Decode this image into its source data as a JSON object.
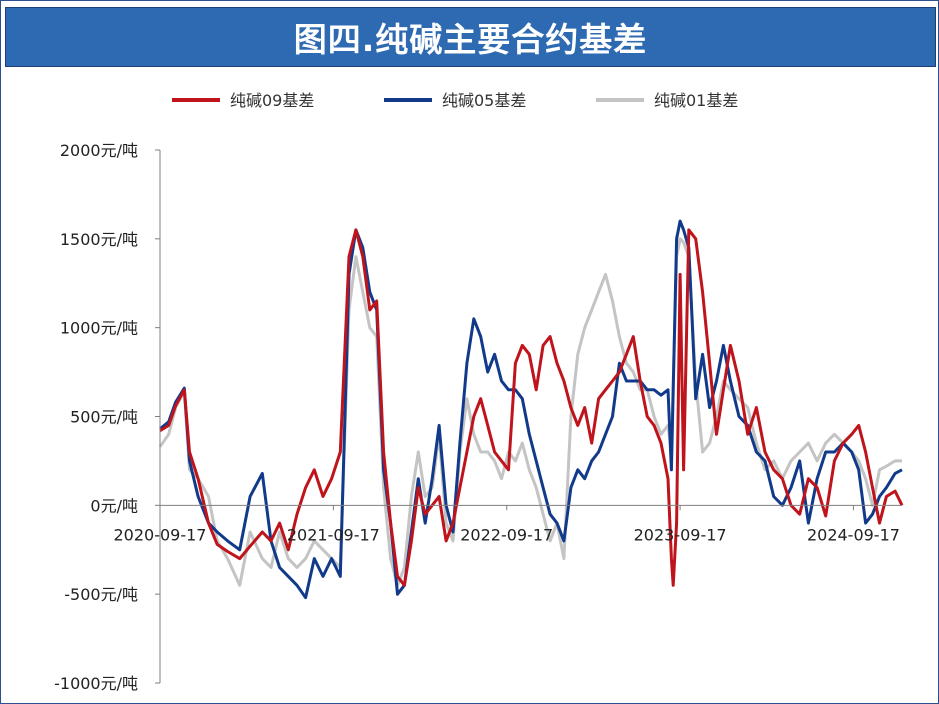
{
  "chart_data": {
    "type": "line",
    "title": "图四.纯碱主要合约基差",
    "y_ticks": [
      "2000元/吨",
      "1500元/吨",
      "1000元/吨",
      "500元/吨",
      "0元/吨",
      "-500元/吨",
      "-1000元/吨"
    ],
    "y_tick_values": [
      2000,
      1500,
      1000,
      500,
      0,
      -500,
      -1000
    ],
    "ylim": [
      -1000,
      2000
    ],
    "x_ticks": [
      "2020-09-17",
      "2021-09-17",
      "2022-09-17",
      "2023-09-17",
      "2024-09-17"
    ],
    "x_tick_values": [
      2020.71,
      2021.71,
      2022.71,
      2023.71,
      2024.71
    ],
    "xlim": [
      2020.71,
      2024.99
    ],
    "legend_position": "top",
    "grid": false,
    "series": [
      {
        "name": "纯碱09基差",
        "color": "#c0141c",
        "points": [
          [
            2020.71,
            420
          ],
          [
            2020.76,
            450
          ],
          [
            2020.8,
            560
          ],
          [
            2020.85,
            650
          ],
          [
            2020.88,
            300
          ],
          [
            2020.93,
            150
          ],
          [
            2020.99,
            -100
          ],
          [
            2021.04,
            -220
          ],
          [
            2021.1,
            -260
          ],
          [
            2021.17,
            -300
          ],
          [
            2021.23,
            -230
          ],
          [
            2021.3,
            -150
          ],
          [
            2021.35,
            -200
          ],
          [
            2021.4,
            -100
          ],
          [
            2021.45,
            -250
          ],
          [
            2021.5,
            -50
          ],
          [
            2021.55,
            100
          ],
          [
            2021.6,
            200
          ],
          [
            2021.65,
            50
          ],
          [
            2021.7,
            150
          ],
          [
            2021.75,
            300
          ],
          [
            2021.8,
            1400
          ],
          [
            2021.84,
            1550
          ],
          [
            2021.88,
            1400
          ],
          [
            2021.92,
            1100
          ],
          [
            2021.96,
            1150
          ],
          [
            2022.0,
            300
          ],
          [
            2022.04,
            -100
          ],
          [
            2022.08,
            -400
          ],
          [
            2022.12,
            -450
          ],
          [
            2022.16,
            -200
          ],
          [
            2022.2,
            100
          ],
          [
            2022.24,
            -50
          ],
          [
            2022.28,
            0
          ],
          [
            2022.32,
            50
          ],
          [
            2022.36,
            -200
          ],
          [
            2022.4,
            -100
          ],
          [
            2022.44,
            100
          ],
          [
            2022.48,
            300
          ],
          [
            2022.52,
            500
          ],
          [
            2022.56,
            600
          ],
          [
            2022.6,
            450
          ],
          [
            2022.64,
            300
          ],
          [
            2022.68,
            250
          ],
          [
            2022.72,
            200
          ],
          [
            2022.76,
            800
          ],
          [
            2022.8,
            900
          ],
          [
            2022.84,
            850
          ],
          [
            2022.88,
            650
          ],
          [
            2022.92,
            900
          ],
          [
            2022.96,
            950
          ],
          [
            2023.0,
            800
          ],
          [
            2023.04,
            700
          ],
          [
            2023.08,
            550
          ],
          [
            2023.12,
            450
          ],
          [
            2023.16,
            550
          ],
          [
            2023.2,
            350
          ],
          [
            2023.24,
            600
          ],
          [
            2023.28,
            650
          ],
          [
            2023.32,
            700
          ],
          [
            2023.36,
            750
          ],
          [
            2023.4,
            850
          ],
          [
            2023.44,
            950
          ],
          [
            2023.48,
            700
          ],
          [
            2023.52,
            500
          ],
          [
            2023.56,
            450
          ],
          [
            2023.6,
            350
          ],
          [
            2023.64,
            150
          ],
          [
            2023.66,
            -300
          ],
          [
            2023.67,
            -450
          ],
          [
            2023.69,
            -100
          ],
          [
            2023.71,
            1300
          ],
          [
            2023.73,
            200
          ],
          [
            2023.76,
            1550
          ],
          [
            2023.8,
            1500
          ],
          [
            2023.84,
            1200
          ],
          [
            2023.88,
            800
          ],
          [
            2023.92,
            400
          ],
          [
            2023.96,
            650
          ],
          [
            2024.0,
            900
          ],
          [
            2024.05,
            700
          ],
          [
            2024.1,
            400
          ],
          [
            2024.15,
            550
          ],
          [
            2024.2,
            300
          ],
          [
            2024.25,
            200
          ],
          [
            2024.3,
            150
          ],
          [
            2024.35,
            0
          ],
          [
            2024.4,
            -50
          ],
          [
            2024.45,
            150
          ],
          [
            2024.5,
            100
          ],
          [
            2024.55,
            -60
          ],
          [
            2024.6,
            250
          ],
          [
            2024.65,
            350
          ],
          [
            2024.7,
            400
          ],
          [
            2024.74,
            450
          ],
          [
            2024.78,
            300
          ],
          [
            2024.82,
            100
          ],
          [
            2024.86,
            -100
          ],
          [
            2024.9,
            50
          ],
          [
            2024.95,
            80
          ],
          [
            2024.99,
            0
          ]
        ]
      },
      {
        "name": "纯碱05基差",
        "color": "#123a8a",
        "points": [
          [
            2020.71,
            430
          ],
          [
            2020.76,
            470
          ],
          [
            2020.8,
            580
          ],
          [
            2020.85,
            660
          ],
          [
            2020.88,
            250
          ],
          [
            2020.93,
            50
          ],
          [
            2020.99,
            -100
          ],
          [
            2021.04,
            -150
          ],
          [
            2021.1,
            -200
          ],
          [
            2021.17,
            -250
          ],
          [
            2021.23,
            50
          ],
          [
            2021.3,
            180
          ],
          [
            2021.35,
            -200
          ],
          [
            2021.4,
            -350
          ],
          [
            2021.45,
            -400
          ],
          [
            2021.5,
            -450
          ],
          [
            2021.55,
            -520
          ],
          [
            2021.6,
            -300
          ],
          [
            2021.65,
            -400
          ],
          [
            2021.7,
            -300
          ],
          [
            2021.75,
            -400
          ],
          [
            2021.8,
            1300
          ],
          [
            2021.84,
            1550
          ],
          [
            2021.88,
            1450
          ],
          [
            2021.92,
            1200
          ],
          [
            2021.96,
            1100
          ],
          [
            2022.0,
            200
          ],
          [
            2022.04,
            -100
          ],
          [
            2022.08,
            -500
          ],
          [
            2022.12,
            -450
          ],
          [
            2022.16,
            -150
          ],
          [
            2022.2,
            150
          ],
          [
            2022.24,
            -100
          ],
          [
            2022.28,
            150
          ],
          [
            2022.32,
            450
          ],
          [
            2022.36,
            0
          ],
          [
            2022.4,
            -150
          ],
          [
            2022.44,
            350
          ],
          [
            2022.48,
            800
          ],
          [
            2022.52,
            1050
          ],
          [
            2022.56,
            950
          ],
          [
            2022.6,
            750
          ],
          [
            2022.64,
            850
          ],
          [
            2022.68,
            700
          ],
          [
            2022.72,
            650
          ],
          [
            2022.76,
            650
          ],
          [
            2022.8,
            600
          ],
          [
            2022.84,
            400
          ],
          [
            2022.88,
            250
          ],
          [
            2022.92,
            100
          ],
          [
            2022.96,
            -50
          ],
          [
            2023.0,
            -100
          ],
          [
            2023.04,
            -200
          ],
          [
            2023.08,
            100
          ],
          [
            2023.12,
            200
          ],
          [
            2023.16,
            150
          ],
          [
            2023.2,
            250
          ],
          [
            2023.24,
            300
          ],
          [
            2023.28,
            400
          ],
          [
            2023.32,
            500
          ],
          [
            2023.36,
            800
          ],
          [
            2023.4,
            700
          ],
          [
            2023.44,
            700
          ],
          [
            2023.48,
            700
          ],
          [
            2023.52,
            650
          ],
          [
            2023.56,
            650
          ],
          [
            2023.6,
            620
          ],
          [
            2023.64,
            650
          ],
          [
            2023.66,
            200
          ],
          [
            2023.69,
            1500
          ],
          [
            2023.71,
            1600
          ],
          [
            2023.73,
            1550
          ],
          [
            2023.76,
            1450
          ],
          [
            2023.8,
            600
          ],
          [
            2023.84,
            850
          ],
          [
            2023.88,
            550
          ],
          [
            2023.92,
            700
          ],
          [
            2023.96,
            900
          ],
          [
            2024.0,
            700
          ],
          [
            2024.05,
            500
          ],
          [
            2024.1,
            450
          ],
          [
            2024.15,
            300
          ],
          [
            2024.2,
            250
          ],
          [
            2024.25,
            50
          ],
          [
            2024.3,
            0
          ],
          [
            2024.35,
            100
          ],
          [
            2024.4,
            250
          ],
          [
            2024.45,
            -100
          ],
          [
            2024.5,
            150
          ],
          [
            2024.55,
            300
          ],
          [
            2024.6,
            300
          ],
          [
            2024.65,
            350
          ],
          [
            2024.7,
            300
          ],
          [
            2024.74,
            200
          ],
          [
            2024.78,
            -100
          ],
          [
            2024.82,
            -50
          ],
          [
            2024.86,
            50
          ],
          [
            2024.9,
            100
          ],
          [
            2024.95,
            180
          ],
          [
            2024.99,
            200
          ]
        ]
      },
      {
        "name": "纯碱01基差",
        "color": "#c4c4c4",
        "points": [
          [
            2020.71,
            330
          ],
          [
            2020.76,
            400
          ],
          [
            2020.8,
            550
          ],
          [
            2020.85,
            640
          ],
          [
            2020.88,
            200
          ],
          [
            2020.93,
            150
          ],
          [
            2020.99,
            50
          ],
          [
            2021.04,
            -200
          ],
          [
            2021.1,
            -300
          ],
          [
            2021.17,
            -450
          ],
          [
            2021.23,
            -150
          ],
          [
            2021.3,
            -300
          ],
          [
            2021.35,
            -350
          ],
          [
            2021.4,
            -150
          ],
          [
            2021.45,
            -300
          ],
          [
            2021.5,
            -350
          ],
          [
            2021.55,
            -300
          ],
          [
            2021.6,
            -200
          ],
          [
            2021.65,
            -250
          ],
          [
            2021.7,
            -300
          ],
          [
            2021.75,
            -350
          ],
          [
            2021.8,
            1100
          ],
          [
            2021.84,
            1400
          ],
          [
            2021.88,
            1200
          ],
          [
            2021.92,
            1000
          ],
          [
            2021.96,
            950
          ],
          [
            2022.0,
            100
          ],
          [
            2022.04,
            -300
          ],
          [
            2022.08,
            -450
          ],
          [
            2022.12,
            -350
          ],
          [
            2022.16,
            50
          ],
          [
            2022.2,
            300
          ],
          [
            2022.24,
            50
          ],
          [
            2022.28,
            100
          ],
          [
            2022.32,
            400
          ],
          [
            2022.36,
            -100
          ],
          [
            2022.4,
            -200
          ],
          [
            2022.44,
            300
          ],
          [
            2022.48,
            600
          ],
          [
            2022.52,
            400
          ],
          [
            2022.56,
            300
          ],
          [
            2022.6,
            300
          ],
          [
            2022.64,
            250
          ],
          [
            2022.68,
            150
          ],
          [
            2022.72,
            300
          ],
          [
            2022.76,
            250
          ],
          [
            2022.8,
            350
          ],
          [
            2022.84,
            200
          ],
          [
            2022.88,
            100
          ],
          [
            2022.92,
            -50
          ],
          [
            2022.96,
            -200
          ],
          [
            2023.0,
            -100
          ],
          [
            2023.04,
            -300
          ],
          [
            2023.08,
            500
          ],
          [
            2023.12,
            850
          ],
          [
            2023.16,
            1000
          ],
          [
            2023.2,
            1100
          ],
          [
            2023.24,
            1200
          ],
          [
            2023.28,
            1300
          ],
          [
            2023.32,
            1150
          ],
          [
            2023.36,
            950
          ],
          [
            2023.4,
            800
          ],
          [
            2023.44,
            750
          ],
          [
            2023.48,
            650
          ],
          [
            2023.52,
            650
          ],
          [
            2023.56,
            500
          ],
          [
            2023.6,
            400
          ],
          [
            2023.64,
            450
          ],
          [
            2023.66,
            300
          ],
          [
            2023.69,
            1400
          ],
          [
            2023.71,
            1500
          ],
          [
            2023.73,
            1480
          ],
          [
            2023.76,
            1400
          ],
          [
            2023.8,
            700
          ],
          [
            2023.84,
            300
          ],
          [
            2023.88,
            350
          ],
          [
            2023.92,
            500
          ],
          [
            2023.96,
            700
          ],
          [
            2024.0,
            650
          ],
          [
            2024.05,
            600
          ],
          [
            2024.1,
            550
          ],
          [
            2024.15,
            350
          ],
          [
            2024.2,
            200
          ],
          [
            2024.25,
            250
          ],
          [
            2024.3,
            150
          ],
          [
            2024.35,
            250
          ],
          [
            2024.4,
            300
          ],
          [
            2024.45,
            350
          ],
          [
            2024.5,
            250
          ],
          [
            2024.55,
            350
          ],
          [
            2024.6,
            400
          ],
          [
            2024.65,
            350
          ],
          [
            2024.7,
            300
          ],
          [
            2024.74,
            250
          ],
          [
            2024.78,
            150
          ],
          [
            2024.82,
            0
          ],
          [
            2024.86,
            200
          ],
          [
            2024.9,
            220
          ],
          [
            2024.95,
            250
          ],
          [
            2024.99,
            250
          ]
        ]
      }
    ]
  }
}
